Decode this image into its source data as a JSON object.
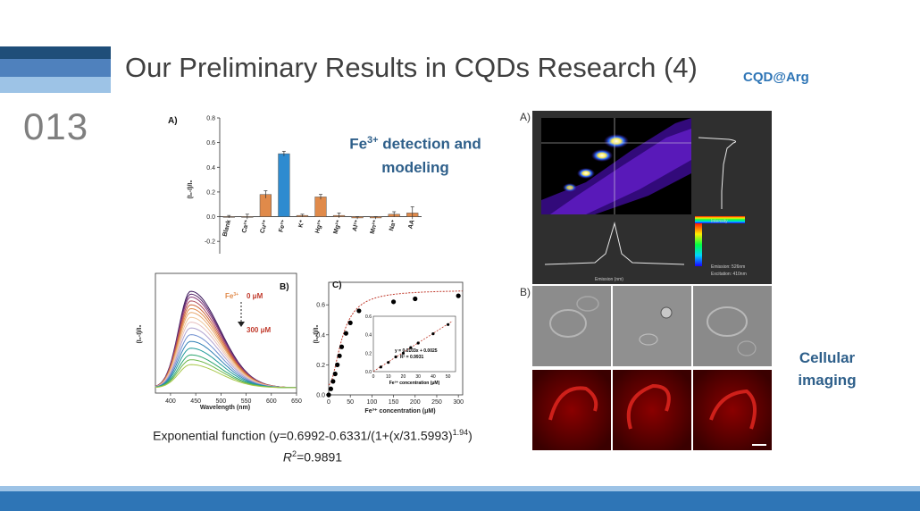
{
  "slide": {
    "title": "Our Preliminary Results in CQDs Research (4)",
    "tag": "CQD@Arg",
    "number": "013"
  },
  "annotations": {
    "fe_detection_line1": "Fe",
    "fe_detection_sup": "3+",
    "fe_detection_rest": " detection and",
    "fe_detection_line2": "modeling",
    "cellular_line1": "Cellular",
    "cellular_line2": "imaging"
  },
  "equation": {
    "line1_prefix": "Exponential function (y=0.6992-0.6331/(1+(x/31.5993)",
    "line1_exp": "1.94",
    "line1_suffix": ")",
    "line2_r": "R",
    "line2_exp": "2",
    "line2_value": "=0.9891"
  },
  "panels": {
    "a_label": "A)",
    "b_label": "B)",
    "c_label": "C)",
    "right_a_label": "A)",
    "right_b_label": "B)",
    "b_conc_top_ion": "Fe",
    "b_conc_top_sup": "3+",
    "b_conc_top": "0 μM",
    "b_conc_bottom": "300 μM",
    "b_xlabel": "Wavelength (nm)",
    "b_ylabel": "(I₀-I)/I₀",
    "c_xlabel": "Fe³⁺ concentration (μM)",
    "c_ylabel": "(I₀-I)/I₀",
    "c_inset_eq": "y = 0.0103x + 0.0025",
    "c_inset_r2": "R² = 0.9931",
    "c_inset_xlabel": "Fe³⁺ concentration (μM)",
    "a_ylabel": "(I₀-I)/I₀",
    "map_emission": "Emission: 526nm",
    "map_excitation": "Excitation: 410nm",
    "map_xaxis": "Emission (nm)",
    "map_intensity": "Intensity"
  },
  "chart_data": [
    {
      "type": "bar",
      "title": "A)",
      "ylabel": "(I₀-I)/I₀",
      "categories": [
        "Blank",
        "Ca²⁺",
        "Cu²⁺",
        "Fe³⁺",
        "K⁺",
        "Hg²⁺",
        "Mg²⁺",
        "Al³⁺",
        "Mn²⁺",
        "Na⁺",
        "AA"
      ],
      "values": [
        0.0,
        0.0,
        0.18,
        0.51,
        0.01,
        0.16,
        0.01,
        -0.01,
        -0.01,
        0.02,
        0.03
      ],
      "errors": [
        0.01,
        0.02,
        0.03,
        0.02,
        0.01,
        0.02,
        0.02,
        0.01,
        0.01,
        0.02,
        0.05
      ],
      "ylim": [
        -0.3,
        0.8
      ],
      "yticks": [
        -0.2,
        0.0,
        0.2,
        0.4,
        0.6,
        0.8
      ],
      "colors": {
        "default": "#e08a4a",
        "highlight": "#2e8bd0"
      }
    },
    {
      "type": "line",
      "title": "B)",
      "xlabel": "Wavelength (nm)",
      "ylabel": "(I₀-I)/I₀",
      "xlim": [
        370,
        650
      ],
      "xticks": [
        400,
        450,
        500,
        550,
        600,
        650
      ],
      "peak_x": 440,
      "peak_heights": [
        1.0,
        0.97,
        0.94,
        0.9,
        0.86,
        0.82,
        0.78,
        0.73,
        0.68,
        0.62,
        0.55,
        0.48,
        0.41,
        0.34,
        0.29,
        0.24
      ]
    },
    {
      "type": "scatter",
      "title": "C)",
      "xlabel": "Fe³⁺ concentration (μM)",
      "ylabel": "(I₀-I)/I₀",
      "xlim": [
        0,
        310
      ],
      "ylim": [
        0,
        0.75
      ],
      "xticks": [
        0,
        50,
        100,
        150,
        200,
        250,
        300
      ],
      "yticks": [
        0.0,
        0.2,
        0.4,
        0.6
      ],
      "x": [
        0,
        5,
        10,
        15,
        20,
        25,
        30,
        40,
        50,
        70,
        150,
        200,
        300
      ],
      "y": [
        0.0,
        0.04,
        0.09,
        0.14,
        0.2,
        0.26,
        0.32,
        0.41,
        0.48,
        0.56,
        0.62,
        0.64,
        0.66
      ],
      "fit": {
        "a": 0.6992,
        "b": 0.6331,
        "c": 31.5993,
        "p": 1.94
      },
      "inset": {
        "x": [
          5,
          10,
          15,
          20,
          25,
          30,
          40,
          50
        ],
        "y": [
          0.05,
          0.1,
          0.16,
          0.2,
          0.26,
          0.31,
          0.41,
          0.51
        ],
        "xticks": [
          0,
          10,
          20,
          30,
          40,
          50
        ],
        "yticks": [
          0.0,
          0.2,
          0.4,
          0.6
        ],
        "equation": "y = 0.0103x + 0.0025",
        "r2": "R² = 0.9931"
      }
    }
  ]
}
